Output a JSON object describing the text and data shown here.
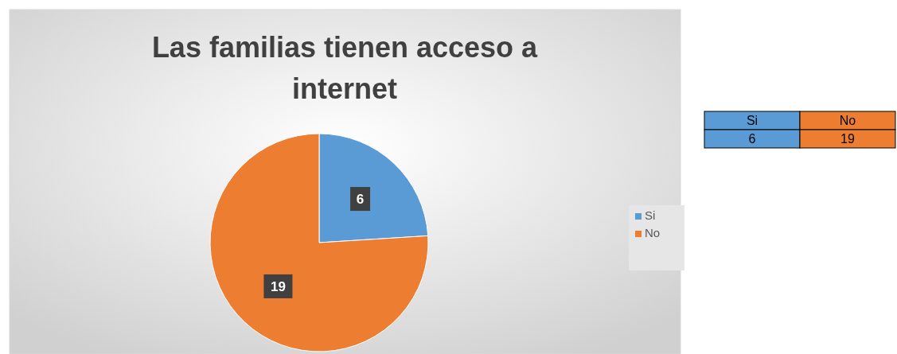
{
  "chart_data": [
    {
      "type": "pie",
      "title": "Las familias tienen acceso a internet",
      "categories": [
        "Si",
        "No"
      ],
      "values": [
        6,
        19
      ],
      "colors": [
        "#5b9bd5",
        "#ed7d31"
      ],
      "data_labels": true,
      "legend": "right"
    },
    {
      "type": "other",
      "categories": [
        "Si",
        "No"
      ],
      "values": [
        6,
        19
      ],
      "colors": [
        "#5b9bd5",
        "#ed7d31"
      ],
      "data_labels": true
    }
  ]
}
